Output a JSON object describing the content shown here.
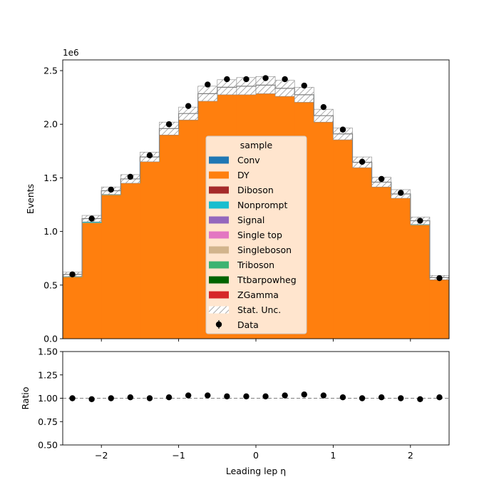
{
  "chart_data": {
    "type": "bar",
    "subtype": "stacked-histogram-with-ratio",
    "xlabel": "Leading lep η",
    "ylabel": "Events",
    "ratio_ylabel": "Ratio",
    "y_multiplier_label": "1e6",
    "xlim": [
      -2.5,
      2.5
    ],
    "ylim": [
      0,
      2.6
    ],
    "ratio_ylim": [
      0.5,
      1.5
    ],
    "x_ticks": [
      -2,
      -1,
      0,
      1,
      2
    ],
    "x_tick_labels": [
      "−2",
      "−1",
      "0",
      "1",
      "2"
    ],
    "y_ticks": [
      0.0,
      0.5,
      1.0,
      1.5,
      2.0,
      2.5
    ],
    "y_tick_labels": [
      "0.0",
      "0.5",
      "1.0",
      "1.5",
      "2.0",
      "2.5"
    ],
    "ratio_y_ticks": [
      0.5,
      0.75,
      1.0,
      1.25,
      1.5
    ],
    "ratio_y_tick_labels": [
      "0.50",
      "0.75",
      "1.00",
      "1.25",
      "1.50"
    ],
    "bin_edges": [
      -2.5,
      -2.25,
      -2.0,
      -1.75,
      -1.5,
      -1.25,
      -1.0,
      -0.75,
      -0.5,
      -0.25,
      0.0,
      0.25,
      0.5,
      0.75,
      1.0,
      1.25,
      1.5,
      1.75,
      2.0,
      2.25,
      2.5
    ],
    "series": [
      {
        "name": "DY",
        "color": "#ff7f0e",
        "values": [
          0.575,
          1.08,
          1.34,
          1.45,
          1.65,
          1.91,
          2.05,
          2.23,
          2.29,
          2.3,
          2.31,
          2.28,
          2.22,
          2.03,
          1.86,
          1.6,
          1.42,
          1.31,
          1.06,
          0.55
        ]
      },
      {
        "name": "Nonprompt",
        "color": "#17becf",
        "values": [
          0.025,
          0.04,
          0.04,
          0.04,
          0.045,
          0.05,
          0.05,
          0.055,
          0.055,
          0.055,
          0.055,
          0.055,
          0.055,
          0.05,
          0.05,
          0.045,
          0.04,
          0.04,
          0.04,
          0.02
        ]
      }
    ],
    "stat_unc": [
      0.02,
      0.03,
      0.035,
      0.04,
      0.045,
      0.06,
      0.06,
      0.07,
      0.07,
      0.08,
      0.08,
      0.075,
      0.07,
      0.06,
      0.055,
      0.05,
      0.045,
      0.04,
      0.035,
      0.02
    ],
    "data_values": [
      0.6,
      1.12,
      1.39,
      1.51,
      1.71,
      2.0,
      2.17,
      2.37,
      2.42,
      2.42,
      2.43,
      2.42,
      2.36,
      2.16,
      1.95,
      1.65,
      1.49,
      1.36,
      1.1,
      0.565
    ],
    "ratio_values": [
      1.0,
      0.99,
      1.0,
      1.01,
      1.0,
      1.01,
      1.03,
      1.03,
      1.02,
      1.02,
      1.02,
      1.03,
      1.04,
      1.03,
      1.01,
      1.0,
      1.01,
      1.0,
      0.99,
      1.01
    ],
    "legend": {
      "title": "sample",
      "placement": "center",
      "entries": [
        {
          "label": "Conv",
          "color": "#1f77b4",
          "kind": "patch"
        },
        {
          "label": "DY",
          "color": "#ff7f0e",
          "kind": "patch"
        },
        {
          "label": "Diboson",
          "color": "#a52a2a",
          "kind": "patch"
        },
        {
          "label": "Nonprompt",
          "color": "#17becf",
          "kind": "patch"
        },
        {
          "label": "Signal",
          "color": "#9467bd",
          "kind": "patch"
        },
        {
          "label": "Single top",
          "color": "#e377c2",
          "kind": "patch"
        },
        {
          "label": "Singleboson",
          "color": "#d2b48c",
          "kind": "patch"
        },
        {
          "label": "Triboson",
          "color": "#3cb371",
          "kind": "patch"
        },
        {
          "label": "Ttbarpowheg",
          "color": "#006400",
          "kind": "patch"
        },
        {
          "label": "ZGamma",
          "color": "#d62728",
          "kind": "patch"
        },
        {
          "label": "Stat. Unc.",
          "color": "#888888",
          "kind": "hatch"
        },
        {
          "label": "Data",
          "color": "#000000",
          "kind": "marker"
        }
      ]
    }
  }
}
